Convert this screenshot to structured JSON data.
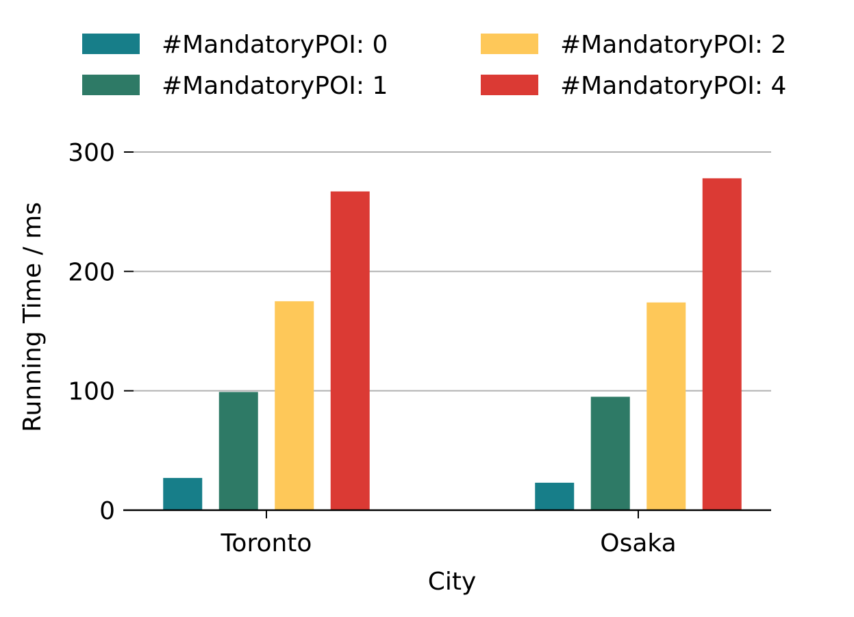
{
  "chart_data": {
    "type": "bar",
    "title": "",
    "xlabel": "City",
    "ylabel": "Running Time / ms",
    "categories": [
      "Toronto",
      "Osaka"
    ],
    "series": [
      {
        "name": "#MandatoryPOI: 0",
        "color": "#177e89",
        "values": [
          27,
          23
        ]
      },
      {
        "name": "#MandatoryPOI: 1",
        "color": "#2e7a66",
        "values": [
          99,
          95
        ]
      },
      {
        "name": "#MandatoryPOI: 2",
        "color": "#fec859",
        "values": [
          175,
          174
        ]
      },
      {
        "name": "#MandatoryPOI: 4",
        "color": "#db3a34",
        "values": [
          267,
          278
        ]
      }
    ],
    "ylim": [
      0,
      300
    ],
    "yticks": [
      0,
      100,
      200,
      300
    ],
    "grid": true,
    "legend_position": "top"
  }
}
